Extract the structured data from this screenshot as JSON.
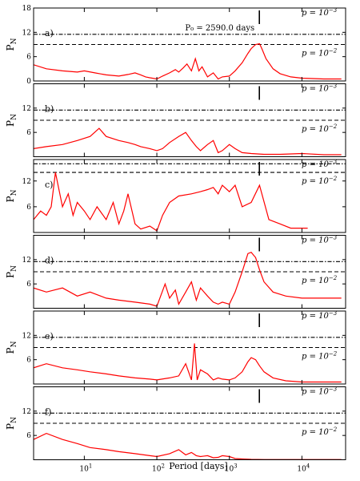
{
  "chart_data": [
    {
      "type": "line",
      "panel_label": "a)",
      "annotation": "P₀ = 2590.0 days",
      "ylabel": "P",
      "ylabel_sub": "N",
      "ylim": [
        0,
        18
      ],
      "yticks": [
        "0",
        "6",
        "12",
        "18"
      ],
      "ytick_values": [
        0,
        6,
        12,
        18
      ],
      "thresholds": [
        {
          "label": "p = 10",
          "exp": "−3",
          "value": 11.5,
          "style": "dash-dot"
        },
        {
          "label": "p = 10",
          "exp": "−2",
          "value": 9.0,
          "style": "dashed"
        }
      ],
      "marker_period": 2590.0,
      "series": [
        {
          "color": "#ff0000",
          "x": [
            2,
            3,
            5,
            8,
            10,
            14,
            20,
            30,
            40,
            50,
            60,
            70,
            80,
            100,
            120,
            150,
            180,
            200,
            230,
            260,
            300,
            340,
            380,
            420,
            500,
            600,
            700,
            800,
            1000,
            1200,
            1500,
            1800,
            2000,
            2300,
            2600,
            2800,
            3200,
            4000,
            5000,
            7000,
            10000,
            20000,
            35000
          ],
          "y": [
            4.0,
            3.0,
            2.5,
            2.2,
            2.5,
            2.0,
            1.5,
            1.2,
            1.6,
            2.0,
            1.5,
            1.0,
            0.8,
            0.5,
            1.2,
            2.0,
            2.8,
            2.2,
            3.2,
            4.2,
            2.5,
            5.5,
            2.5,
            3.5,
            1.0,
            2.0,
            0.5,
            1.0,
            1.2,
            2.5,
            4.5,
            6.8,
            8.0,
            9.0,
            9.2,
            8.0,
            5.5,
            3.0,
            1.8,
            1.0,
            0.7,
            0.5,
            0.5
          ]
        }
      ]
    },
    {
      "type": "line",
      "panel_label": "b)",
      "ylabel": "P",
      "ylabel_sub": "N",
      "ylim": [
        0,
        18
      ],
      "yticks": [
        "6",
        "12"
      ],
      "ytick_values": [
        6,
        12
      ],
      "thresholds": [
        {
          "label": "p = 10",
          "exp": "−3",
          "value": 11.5,
          "style": "dash-dot"
        },
        {
          "label": "p = 10",
          "exp": "−2",
          "value": 9.0,
          "style": "dashed"
        }
      ],
      "marker_period": 2590.0,
      "series": [
        {
          "color": "#ff0000",
          "x": [
            2,
            3,
            5,
            8,
            12,
            16,
            20,
            30,
            40,
            50,
            60,
            80,
            100,
            120,
            150,
            200,
            250,
            300,
            350,
            400,
            500,
            600,
            700,
            800,
            1000,
            1200,
            1500,
            2000,
            3000,
            5000,
            10000,
            20000,
            35000
          ],
          "y": [
            2.0,
            2.5,
            3.0,
            4.0,
            5.0,
            7.0,
            5.0,
            4.0,
            3.5,
            3.0,
            2.5,
            2.0,
            1.5,
            2.0,
            3.5,
            5.0,
            6.0,
            4.0,
            2.5,
            1.5,
            3.0,
            4.0,
            1.0,
            1.5,
            3.0,
            2.0,
            1.0,
            0.8,
            0.6,
            0.6,
            0.8,
            0.5,
            0.5
          ]
        }
      ]
    },
    {
      "type": "line",
      "panel_label": "c)",
      "ylabel": "P",
      "ylabel_sub": "N",
      "ylim": [
        0,
        17
      ],
      "yticks": [
        "6",
        "12"
      ],
      "ytick_values": [
        6,
        12
      ],
      "thresholds": [
        {
          "label": "p = 10",
          "exp": "−3",
          "value": 16.0,
          "style": "dash-dot"
        },
        {
          "label": "p = 10",
          "exp": "−2",
          "value": 14.0,
          "style": "dashed"
        }
      ],
      "marker_period": 2590.0,
      "series": [
        {
          "color": "#ff0000",
          "x": [
            2,
            2.5,
            3,
            3.5,
            4,
            5,
            6,
            7,
            8,
            10,
            12,
            15,
            20,
            25,
            30,
            35,
            40,
            50,
            60,
            80,
            100,
            120,
            150,
            200,
            300,
            400,
            500,
            600,
            700,
            800,
            1000,
            1200,
            1500,
            2000,
            2600,
            3500,
            5000,
            7000,
            12000
          ],
          "y": [
            3.0,
            5.0,
            4.0,
            6.0,
            14.0,
            6.0,
            9.0,
            4.0,
            7.0,
            5.0,
            3.0,
            6.0,
            3.0,
            7.0,
            2.0,
            5.0,
            9.0,
            2.0,
            0.8,
            1.5,
            0.4,
            4.0,
            7.0,
            8.5,
            9.0,
            9.5,
            10.0,
            10.5,
            9.0,
            11.0,
            9.5,
            11.0,
            6.0,
            7.0,
            11.0,
            3.0,
            2.0,
            1.0,
            1.0
          ]
        }
      ]
    },
    {
      "type": "line",
      "panel_label": "d)",
      "ylabel": "P",
      "ylabel_sub": "N",
      "ylim": [
        0,
        18
      ],
      "yticks": [
        "6",
        "12"
      ],
      "ytick_values": [
        6,
        12
      ],
      "thresholds": [
        {
          "label": "p = 10",
          "exp": "−3",
          "value": 11.5,
          "style": "dash-dot"
        },
        {
          "label": "p = 10",
          "exp": "−2",
          "value": 9.0,
          "style": "dashed"
        }
      ],
      "marker_period": 2590.0,
      "series": [
        {
          "color": "#ff0000",
          "x": [
            2,
            3,
            5,
            8,
            12,
            20,
            30,
            50,
            80,
            100,
            130,
            150,
            180,
            200,
            250,
            300,
            350,
            400,
            500,
            600,
            700,
            800,
            1000,
            1200,
            1500,
            1800,
            2000,
            2300,
            2600,
            3000,
            4000,
            6000,
            10000,
            20000,
            35000
          ],
          "y": [
            5.0,
            4.0,
            5.0,
            3.0,
            4.0,
            2.5,
            2.0,
            1.5,
            1.0,
            0.5,
            6.0,
            2.5,
            4.5,
            1.0,
            4.0,
            6.5,
            2.0,
            5.0,
            3.0,
            1.5,
            1.0,
            1.5,
            1.0,
            4.0,
            9.0,
            13.5,
            13.8,
            12.5,
            9.5,
            6.5,
            4.0,
            3.0,
            2.5,
            2.5,
            2.5
          ]
        }
      ]
    },
    {
      "type": "line",
      "panel_label": "e)",
      "ylabel": "P",
      "ylabel_sub": "N",
      "ylim": [
        0,
        18
      ],
      "yticks": [
        "6",
        "12"
      ],
      "ytick_values": [
        6,
        12
      ],
      "thresholds": [
        {
          "label": "p = 10",
          "exp": "−3",
          "value": 11.5,
          "style": "dash-dot"
        },
        {
          "label": "p = 10",
          "exp": "−2",
          "value": 9.0,
          "style": "dashed"
        }
      ],
      "marker_period": 2590.0,
      "series": [
        {
          "color": "#ff0000",
          "x": [
            2,
            3,
            5,
            8,
            12,
            20,
            30,
            50,
            80,
            100,
            150,
            200,
            250,
            300,
            330,
            360,
            400,
            500,
            600,
            700,
            800,
            1000,
            1200,
            1500,
            1800,
            2000,
            2300,
            2600,
            3000,
            4000,
            6000,
            10000,
            20000,
            35000
          ],
          "y": [
            4.0,
            5.0,
            4.0,
            3.5,
            3.0,
            2.5,
            2.0,
            1.5,
            1.2,
            1.0,
            1.5,
            2.0,
            5.0,
            1.0,
            10.0,
            1.0,
            3.5,
            2.5,
            1.0,
            1.5,
            1.2,
            1.0,
            1.5,
            3.0,
            5.5,
            6.5,
            6.0,
            4.5,
            3.0,
            1.5,
            0.8,
            0.5,
            0.5,
            0.5
          ]
        }
      ]
    },
    {
      "type": "line",
      "panel_label": "f)",
      "ylabel": "P",
      "ylabel_sub": "N",
      "ylim": [
        0,
        18
      ],
      "yticks": [
        "6",
        "12"
      ],
      "ytick_values": [
        6,
        12
      ],
      "thresholds": [
        {
          "label": "p = 10",
          "exp": "−3",
          "value": 11.5,
          "style": "dash-dot"
        },
        {
          "label": "p = 10",
          "exp": "−2",
          "value": 9.0,
          "style": "dashed"
        }
      ],
      "marker_period": 2590.0,
      "series": [
        {
          "color": "#ff0000",
          "x": [
            2,
            3,
            5,
            8,
            12,
            20,
            30,
            50,
            80,
            100,
            150,
            200,
            250,
            300,
            350,
            400,
            500,
            600,
            700,
            800,
            1000,
            1200,
            1500,
            2000,
            3000,
            5000,
            10000,
            20000,
            35000
          ],
          "y": [
            5.0,
            6.5,
            5.0,
            4.0,
            3.0,
            2.5,
            2.0,
            1.5,
            1.0,
            0.8,
            1.5,
            2.5,
            1.2,
            1.8,
            1.0,
            0.8,
            1.0,
            0.5,
            0.6,
            1.0,
            0.8,
            0.3,
            0.2,
            0.1,
            0.05,
            0.05,
            0.05,
            0.05,
            0.05
          ]
        }
      ]
    }
  ],
  "shared_x": {
    "label": "Period [days]",
    "scale": "log",
    "xlim": [
      2,
      40000
    ],
    "ticks": [
      {
        "value": 10,
        "base": "10",
        "exp": "1"
      },
      {
        "value": 100,
        "base": "10",
        "exp": "2"
      },
      {
        "value": 1000,
        "base": "10",
        "exp": "3"
      },
      {
        "value": 10000,
        "base": "10",
        "exp": "4"
      }
    ]
  }
}
